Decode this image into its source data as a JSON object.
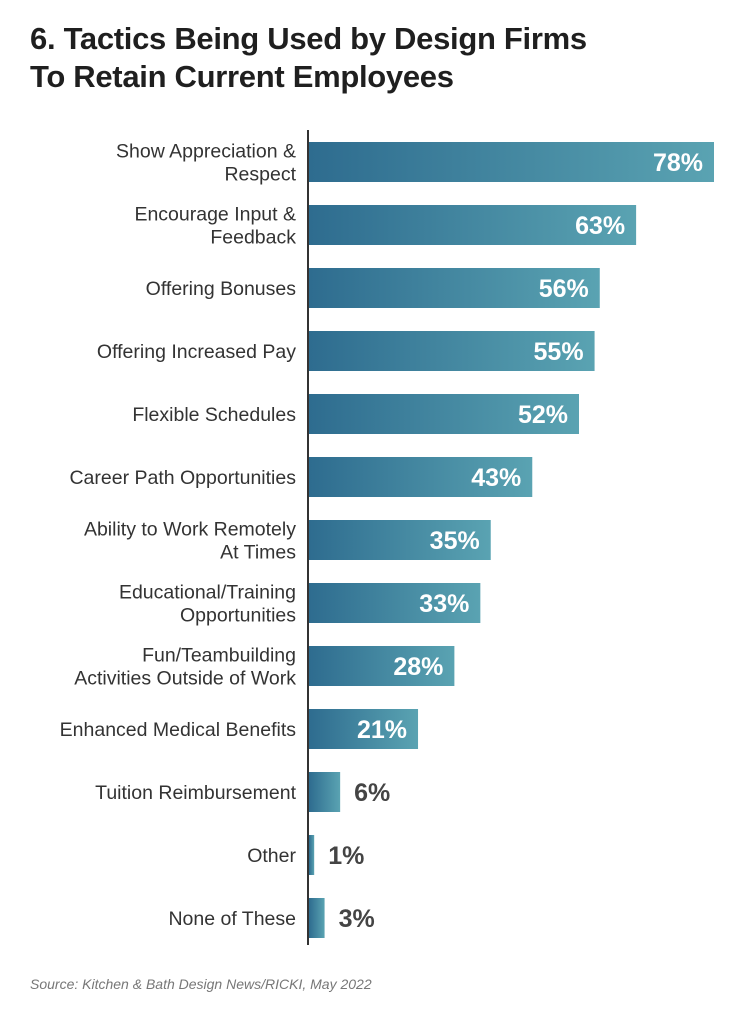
{
  "title_lines": [
    "6. Tactics Being Used by Design Firms",
    "To Retain Current Employees"
  ],
  "source": "Source: Kitchen & Bath Design News/RICKI, May 2022",
  "colors": {
    "bar_dark": "#2e6c8f",
    "bar_light": "#5aa3b2",
    "axis": "#333333",
    "label_text": "#333333",
    "value_inside": "#ffffff",
    "value_outside": "#444444"
  },
  "chart_data": {
    "type": "bar",
    "orientation": "horizontal",
    "title": "6. Tactics Being Used by Design Firms To Retain Current Employees",
    "xlabel": "",
    "ylabel": "",
    "xlim": [
      0,
      78
    ],
    "grid": false,
    "legend": "none",
    "categories": [
      [
        "Show Appreciation &",
        "Respect"
      ],
      [
        "Encourage Input &",
        "Feedback"
      ],
      [
        "Offering Bonuses"
      ],
      [
        "Offering Increased Pay"
      ],
      [
        "Flexible Schedules"
      ],
      [
        "Career Path Opportunities"
      ],
      [
        "Ability to Work Remotely",
        "At Times"
      ],
      [
        "Educational/Training",
        "Opportunities"
      ],
      [
        "Fun/Teambuilding",
        "Activities Outside of Work"
      ],
      [
        "Enhanced Medical Benefits"
      ],
      [
        "Tuition Reimbursement"
      ],
      [
        "Other"
      ],
      [
        "None of These"
      ]
    ],
    "values": [
      78,
      63,
      56,
      55,
      52,
      43,
      35,
      33,
      28,
      21,
      6,
      1,
      3
    ],
    "value_labels": [
      "78%",
      "63%",
      "56%",
      "55%",
      "52%",
      "43%",
      "35%",
      "33%",
      "28%",
      "21%",
      "6%",
      "1%",
      "3%"
    ]
  }
}
